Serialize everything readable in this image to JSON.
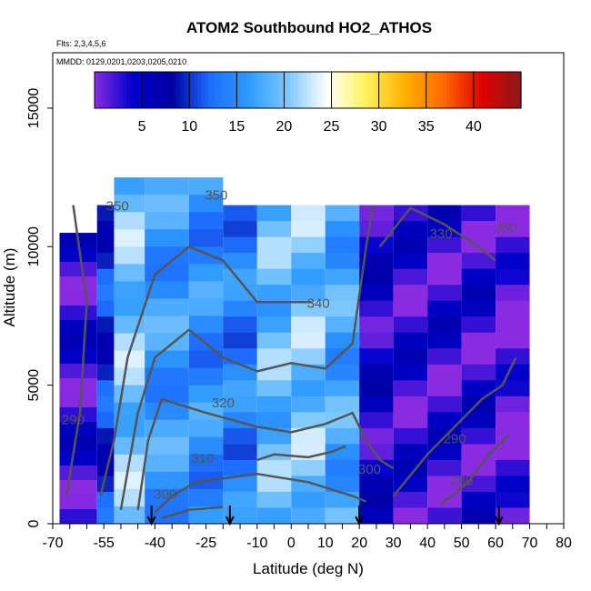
{
  "chart_data": {
    "type": "heatmap",
    "title": "ATOM2 Southbound HO2_ATHOS",
    "subtitle_flights": "Flts: 2,3,4,5,6",
    "subtitle_dates": "MMDD: 0129,0201,0203,0205,0210",
    "xlabel": "Latitude (deg N)",
    "ylabel": "Altitude (m)",
    "xlim": [
      -70,
      80
    ],
    "ylim": [
      0,
      17000
    ],
    "x_ticks": [
      -70,
      -55,
      -40,
      -25,
      -10,
      0,
      10,
      20,
      30,
      40,
      50,
      60,
      70,
      80
    ],
    "y_ticks": [
      0,
      5000,
      10000,
      15000
    ],
    "colorbar": {
      "min": 0,
      "max": 45,
      "ticks": [
        5,
        10,
        15,
        20,
        25,
        30,
        35,
        40
      ],
      "colors": [
        "#8a2be2",
        "#0000cd",
        "#0000a0",
        "#1e6fff",
        "#2f9bff",
        "#7fc8ff",
        "#ffffff",
        "#fff25a",
        "#ffb000",
        "#ff6a00",
        "#e00000",
        "#8b1a1a"
      ]
    },
    "heatmap_columns": [
      {
        "lat_range": [
          -68,
          -57
        ],
        "alt_top": 10500,
        "value": 3
      },
      {
        "lat_range": [
          -57,
          -52
        ],
        "alt_top": 11500,
        "value": 10
      },
      {
        "lat_range": [
          -52,
          -43
        ],
        "alt_top": 12500,
        "value": 20
      },
      {
        "lat_range": [
          -43,
          -30
        ],
        "alt_top": 12500,
        "value": 16
      },
      {
        "lat_range": [
          -30,
          -20
        ],
        "alt_top": 12500,
        "value": 15
      },
      {
        "lat_range": [
          -20,
          -10
        ],
        "alt_top": 11500,
        "value": 14
      },
      {
        "lat_range": [
          -10,
          0
        ],
        "alt_top": 11500,
        "value": 19
      },
      {
        "lat_range": [
          0,
          10
        ],
        "alt_top": 11500,
        "value": 20
      },
      {
        "lat_range": [
          10,
          20
        ],
        "alt_top": 11500,
        "value": 17
      },
      {
        "lat_range": [
          20,
          30
        ],
        "alt_top": 11500,
        "value": 4
      },
      {
        "lat_range": [
          30,
          40
        ],
        "alt_top": 11500,
        "value": 3
      },
      {
        "lat_range": [
          40,
          50
        ],
        "alt_top": 11500,
        "value": 3
      },
      {
        "lat_range": [
          50,
          60
        ],
        "alt_top": 11500,
        "value": 3
      },
      {
        "lat_range": [
          60,
          70
        ],
        "alt_top": 11500,
        "value": 1
      }
    ],
    "contour_labels": [
      {
        "text": "350",
        "lat": -22,
        "alt": 11700
      },
      {
        "text": "330",
        "lat": 44,
        "alt": 10300
      },
      {
        "text": "350",
        "lat": 63,
        "alt": 10500
      },
      {
        "text": "340",
        "lat": 8,
        "alt": 7800
      },
      {
        "text": "320",
        "lat": -20,
        "alt": 4200
      },
      {
        "text": "310",
        "lat": -26,
        "alt": 2200
      },
      {
        "text": "300",
        "lat": -37,
        "alt": 900
      },
      {
        "text": "300",
        "lat": 23,
        "alt": 1800
      },
      {
        "text": "290",
        "lat": 48,
        "alt": 2900
      },
      {
        "text": "280",
        "lat": 50,
        "alt": 1400
      },
      {
        "text": "290",
        "lat": -64,
        "alt": 3600
      },
      {
        "text": "350",
        "lat": -51,
        "alt": 11300
      }
    ],
    "arrow_markers": [
      -41,
      -18,
      20,
      61
    ],
    "grid": false
  }
}
